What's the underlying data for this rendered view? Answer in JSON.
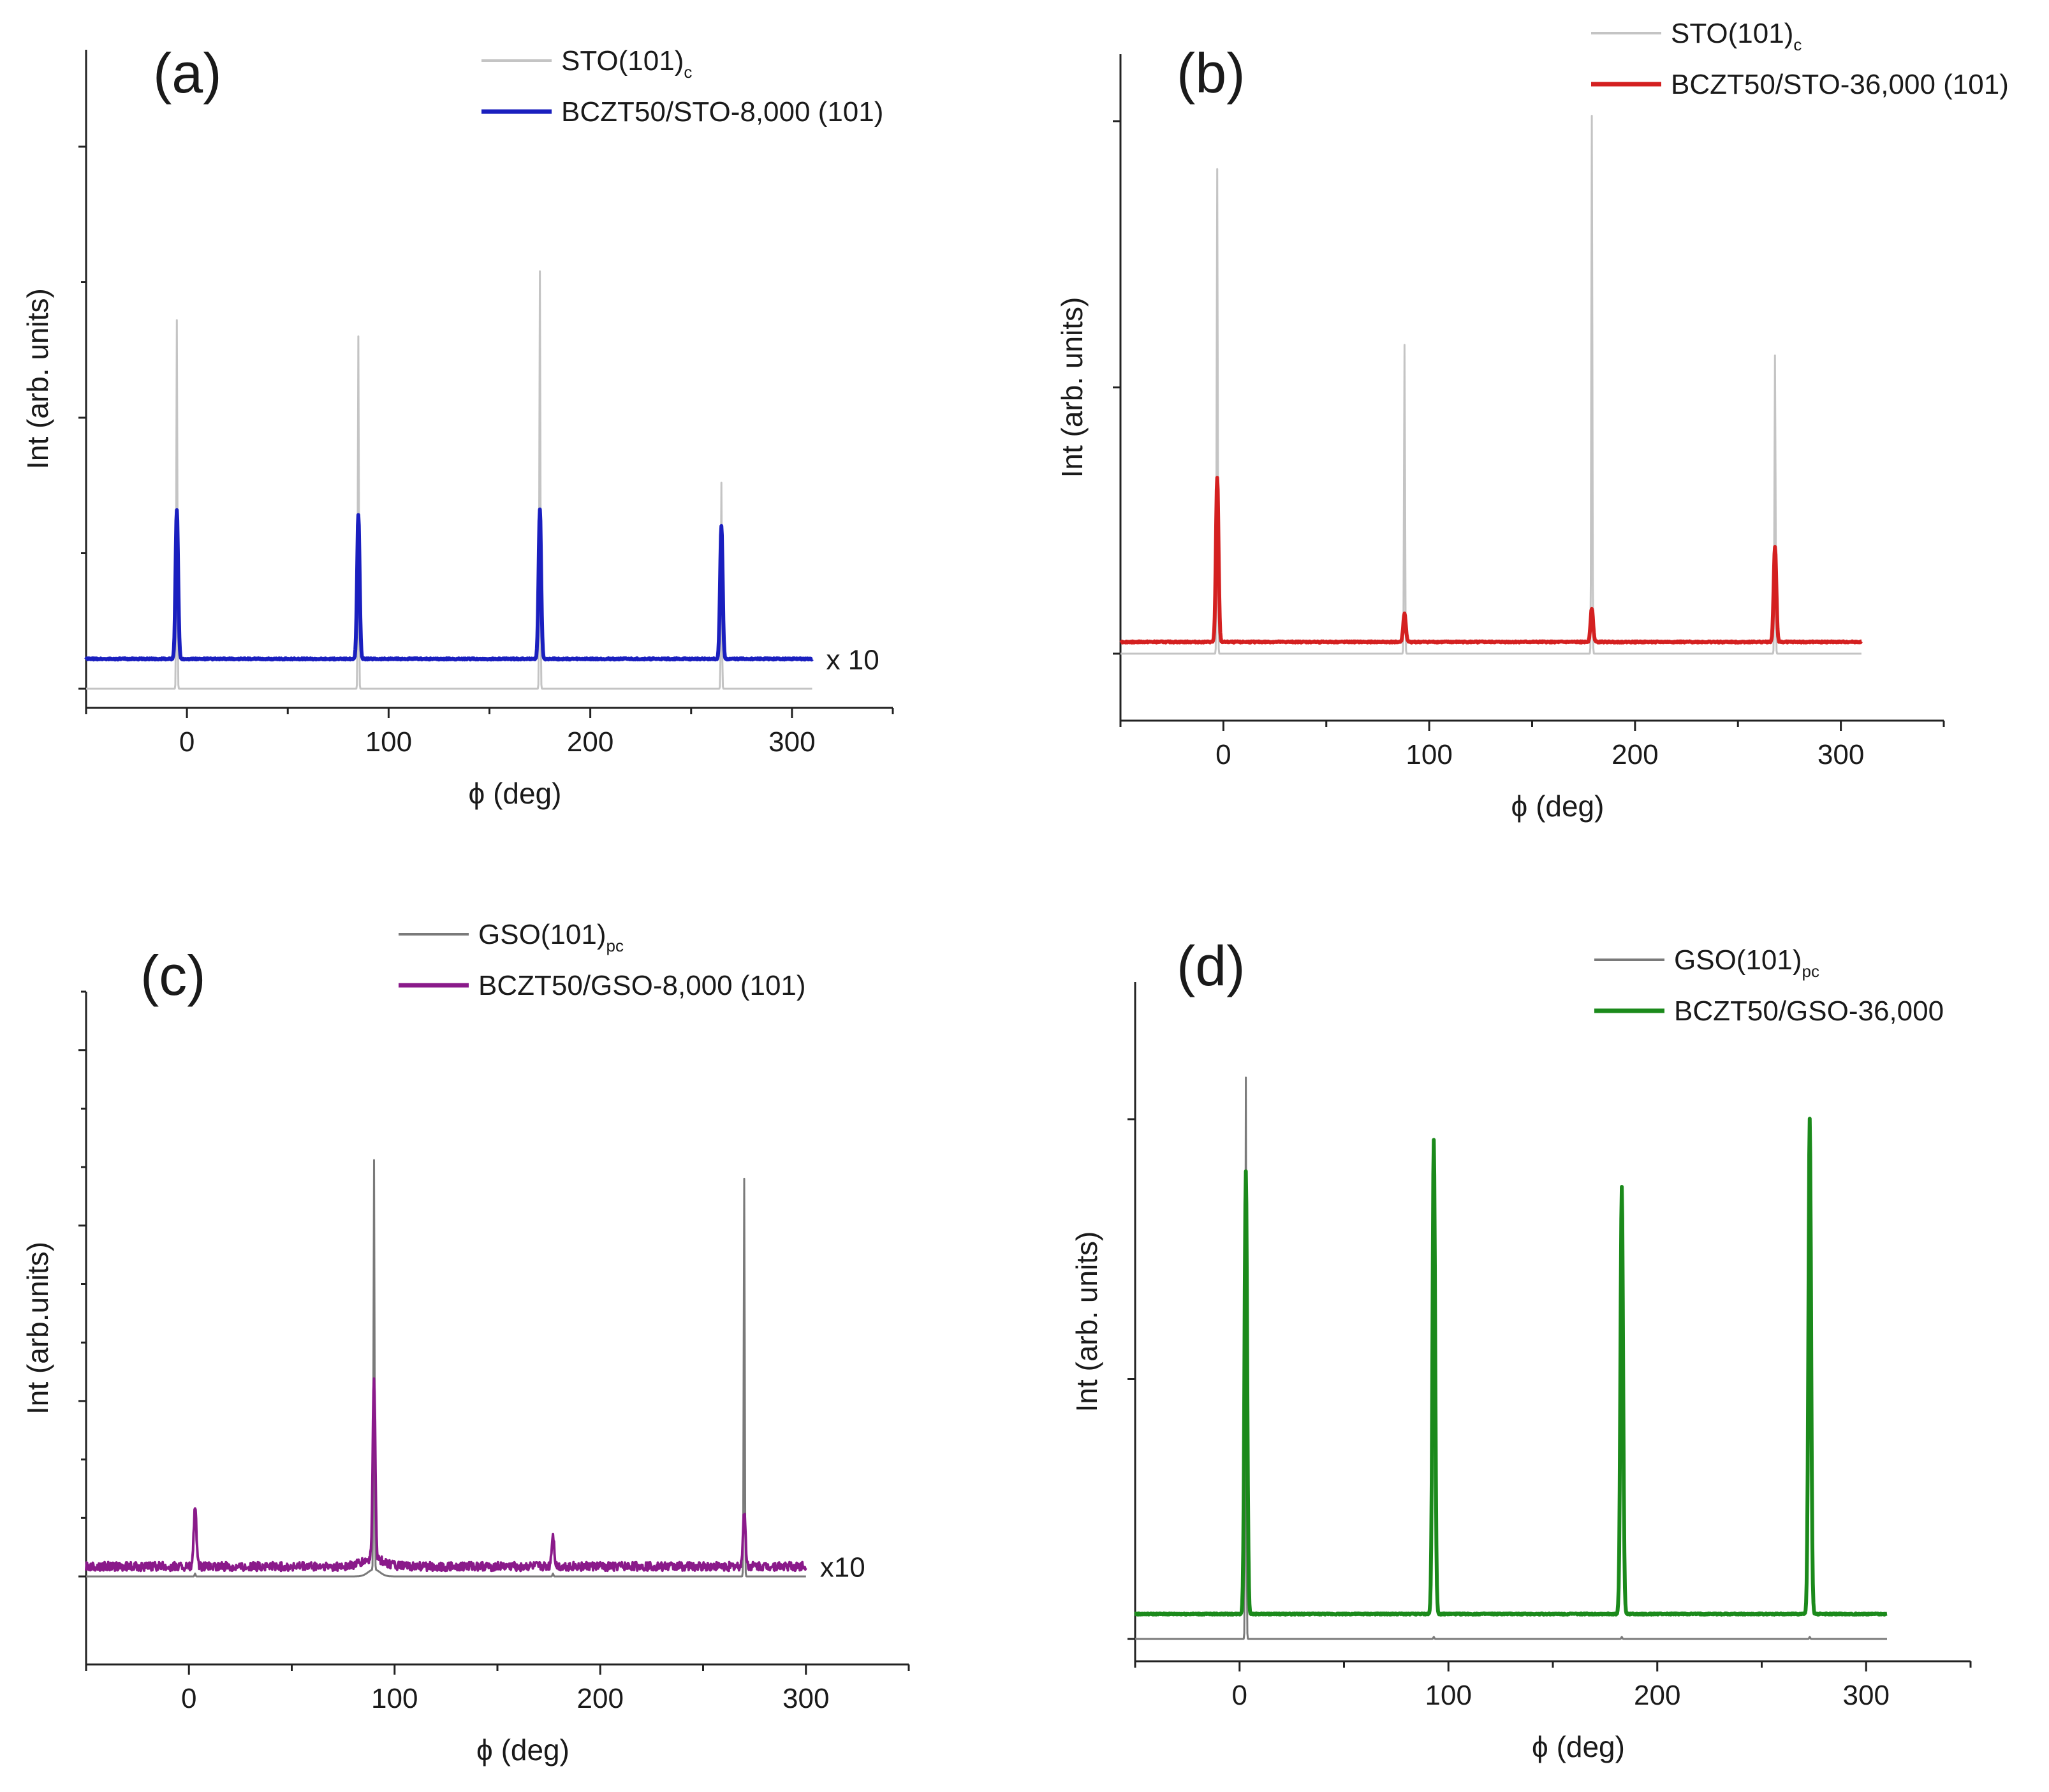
{
  "chart_data": [
    {
      "type": "line",
      "panel_label": "(a)",
      "xlabel": "ϕ (deg)",
      "ylabel": "Int (arb. units)",
      "xlim": [
        -50,
        350
      ],
      "xticks": [
        0,
        100,
        200,
        300
      ],
      "xtick_labels": [
        "0",
        "100",
        "200",
        "300"
      ],
      "yticks": [
        0,
        0.25,
        0.5,
        0.75,
        1.0
      ],
      "legend": {
        "position": "top-right"
      },
      "multiplier_label": "x 10",
      "x_data_range": [
        -50,
        310
      ],
      "series": [
        {
          "name": "STO(101)",
          "name_sub": "c",
          "color": "#c4c4c4",
          "baseline": 0.0,
          "peaks": [
            {
              "x": -5,
              "height": 0.68
            },
            {
              "x": 85,
              "height": 0.65
            },
            {
              "x": 175,
              "height": 0.77
            },
            {
              "x": 265,
              "height": 0.38
            }
          ]
        },
        {
          "name": "BCZT50/STO-8,000 (101)",
          "name_sub": "",
          "color": "#1a1fbf",
          "baseline": 0.055,
          "peaks": [
            {
              "x": -5,
              "height": 0.33
            },
            {
              "x": 85,
              "height": 0.32
            },
            {
              "x": 175,
              "height": 0.33
            },
            {
              "x": 265,
              "height": 0.3
            }
          ]
        }
      ]
    },
    {
      "type": "line",
      "panel_label": "(b)",
      "xlabel": "ϕ (deg)",
      "ylabel": "Int (arb. units)",
      "xlim": [
        -50,
        350
      ],
      "xticks": [
        0,
        100,
        200,
        300
      ],
      "xtick_labels": [
        "0",
        "100",
        "200",
        "300"
      ],
      "yticks": [
        0,
        0.5,
        1.0
      ],
      "legend": {
        "position": "top-right"
      },
      "multiplier_label": "",
      "x_data_range": [
        -50,
        310
      ],
      "series": [
        {
          "name": "STO(101)",
          "name_sub": "c",
          "color": "#c4c4c4",
          "baseline": 0.0,
          "peaks": [
            {
              "x": -3,
              "height": 0.91
            },
            {
              "x": 88,
              "height": 0.58
            },
            {
              "x": 179,
              "height": 1.01
            },
            {
              "x": 268,
              "height": 0.56
            }
          ]
        },
        {
          "name": "BCZT50/STO-36,000 (101)",
          "name_sub": "",
          "color": "#d42020",
          "baseline": 0.022,
          "peaks": [
            {
              "x": -3,
              "height": 0.33
            },
            {
              "x": 88,
              "height": 0.075
            },
            {
              "x": 179,
              "height": 0.085
            },
            {
              "x": 268,
              "height": 0.2
            }
          ]
        }
      ]
    },
    {
      "type": "line",
      "panel_label": "(c)",
      "xlabel": "ϕ (deg)",
      "ylabel": "Int (arb.units)",
      "xlim": [
        -50,
        350
      ],
      "xticks": [
        0,
        100,
        200,
        300
      ],
      "xtick_labels": [
        "0",
        "100",
        "200",
        "300"
      ],
      "yticks": [
        0,
        0.1,
        0.2,
        0.3,
        0.4,
        0.5,
        0.6,
        0.7,
        0.8,
        0.9,
        1.0
      ],
      "legend": {
        "position": "top-right"
      },
      "multiplier_label": "x10",
      "x_data_range": [
        -50,
        300
      ],
      "series": [
        {
          "name": "GSO(101)",
          "name_sub": "pc",
          "color": "#7a7a7a",
          "baseline": 0.0,
          "peaks": [
            {
              "x": 3,
              "height": 0.005
            },
            {
              "x": 90,
              "height": 0.7
            },
            {
              "x": 177,
              "height": 0.005
            },
            {
              "x": 270,
              "height": 0.68
            }
          ]
        },
        {
          "name": "BCZT50/GSO-8,000 (101)",
          "name_sub": "",
          "color": "#8a1a8a",
          "baseline": 0.017,
          "peaks": [
            {
              "x": 3,
              "height": 0.12
            },
            {
              "x": 90,
              "height": 0.33
            },
            {
              "x": 177,
              "height": 0.07
            },
            {
              "x": 270,
              "height": 0.11
            }
          ]
        }
      ]
    },
    {
      "type": "line",
      "panel_label": "(d)",
      "xlabel": "ϕ (deg)",
      "ylabel": "Int (arb. units)",
      "xlim": [
        -50,
        350
      ],
      "xticks": [
        0,
        100,
        200,
        300
      ],
      "xtick_labels": [
        "0",
        "100",
        "200",
        "300"
      ],
      "yticks": [
        0,
        0.5,
        1.0
      ],
      "legend": {
        "position": "top-right"
      },
      "multiplier_label": "",
      "x_data_range": [
        -50,
        310
      ],
      "series": [
        {
          "name": "GSO(101)",
          "name_sub": "pc",
          "color": "#7a7a7a",
          "baseline": 0.0,
          "peaks": [
            {
              "x": 3,
              "height": 1.08
            },
            {
              "x": 93,
              "height": 0.004
            },
            {
              "x": 183,
              "height": 0.004
            },
            {
              "x": 273,
              "height": 0.004
            }
          ]
        },
        {
          "name": "BCZT50/GSO-36,000",
          "name_sub": "",
          "color": "#1b8a1b",
          "baseline": 0.048,
          "peaks": [
            {
              "x": 3,
              "height": 0.9
            },
            {
              "x": 93,
              "height": 0.96
            },
            {
              "x": 183,
              "height": 0.87
            },
            {
              "x": 273,
              "height": 1.0
            }
          ]
        }
      ]
    }
  ]
}
